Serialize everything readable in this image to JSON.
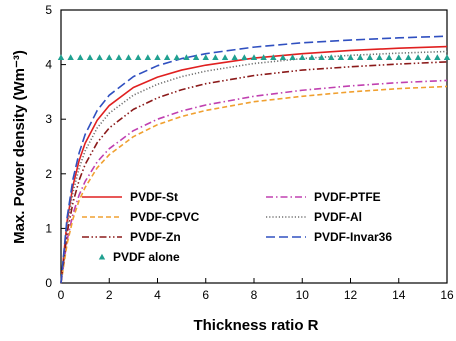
{
  "chart_data": {
    "type": "line",
    "xlabel": "Thickness ratio R",
    "ylabel": "Max. Power density (Wm⁻³)",
    "xlim": [
      0,
      16
    ],
    "ylim": [
      0,
      5
    ],
    "x_ticks": [
      "0",
      "2",
      "4",
      "6",
      "8",
      "10",
      "12",
      "14",
      "16"
    ],
    "y_ticks": [
      "0",
      "1",
      "2",
      "3",
      "4",
      "5"
    ],
    "grid": false,
    "legend_position": "bottom-center",
    "series": [
      {
        "name": "PVDF-St",
        "color": "#e02020",
        "style": "solid",
        "x": [
          0,
          0.25,
          0.5,
          0.75,
          1,
          1.5,
          2,
          3,
          4,
          5,
          6,
          8,
          10,
          12,
          14,
          16
        ],
        "y": [
          0,
          1.12,
          1.79,
          2.24,
          2.56,
          2.98,
          3.25,
          3.58,
          3.77,
          3.9,
          3.99,
          4.12,
          4.2,
          4.26,
          4.3,
          4.33
        ]
      },
      {
        "name": "PVDF-PTFE",
        "color": "#c040b0",
        "style": "dashdot",
        "x": [
          0,
          0.25,
          0.5,
          0.75,
          1,
          1.5,
          2,
          3,
          4,
          5,
          6,
          8,
          10,
          12,
          14,
          16
        ],
        "y": [
          0,
          0.78,
          1.27,
          1.61,
          1.86,
          2.22,
          2.46,
          2.79,
          3.0,
          3.15,
          3.26,
          3.42,
          3.53,
          3.61,
          3.67,
          3.71
        ]
      },
      {
        "name": "PVDF-CPVC",
        "color": "#f0a030",
        "style": "dashed",
        "x": [
          0,
          0.25,
          0.5,
          0.75,
          1,
          1.5,
          2,
          3,
          4,
          5,
          6,
          8,
          10,
          12,
          14,
          16
        ],
        "y": [
          0,
          0.71,
          1.18,
          1.51,
          1.75,
          2.11,
          2.35,
          2.68,
          2.9,
          3.05,
          3.16,
          3.32,
          3.42,
          3.5,
          3.56,
          3.6
        ]
      },
      {
        "name": "PVDF-Al",
        "color": "#707070",
        "style": "dotted",
        "x": [
          0,
          0.25,
          0.5,
          0.75,
          1,
          1.5,
          2,
          3,
          4,
          5,
          6,
          8,
          10,
          12,
          14,
          16
        ],
        "y": [
          0,
          1.03,
          1.67,
          2.1,
          2.42,
          2.84,
          3.11,
          3.44,
          3.64,
          3.78,
          3.88,
          4.02,
          4.11,
          4.17,
          4.21,
          4.24
        ]
      },
      {
        "name": "PVDF-Zn",
        "color": "#8b1a1a",
        "style": "dashdotdot",
        "x": [
          0,
          0.25,
          0.5,
          0.75,
          1,
          1.5,
          2,
          3,
          4,
          5,
          6,
          8,
          10,
          12,
          14,
          16
        ],
        "y": [
          0,
          0.91,
          1.48,
          1.88,
          2.17,
          2.57,
          2.84,
          3.18,
          3.39,
          3.54,
          3.65,
          3.8,
          3.9,
          3.96,
          4.01,
          4.05
        ]
      },
      {
        "name": "PVDF-Invar36",
        "color": "#3050c0",
        "style": "longdash",
        "x": [
          0,
          0.25,
          0.5,
          0.75,
          1,
          1.5,
          2,
          3,
          4,
          5,
          6,
          8,
          10,
          12,
          14,
          16
        ],
        "y": [
          0,
          1.19,
          1.91,
          2.38,
          2.72,
          3.16,
          3.44,
          3.78,
          3.98,
          4.11,
          4.2,
          4.32,
          4.4,
          4.45,
          4.49,
          4.52
        ]
      },
      {
        "name": "PVDF alone",
        "color": "#20a090",
        "style": "triangle-markers",
        "x": [
          0,
          0.4,
          0.8,
          1.2,
          1.6,
          2,
          2.4,
          2.8,
          3.2,
          3.6,
          4,
          4.4,
          4.8,
          5.2,
          5.6,
          6,
          6.4,
          6.8,
          7.2,
          7.6,
          8,
          8.4,
          8.8,
          9.2,
          9.6,
          10,
          10.4,
          10.8,
          11.2,
          11.6,
          12,
          12.4,
          12.8,
          13.2,
          13.6,
          14,
          14.4,
          14.8,
          15.2,
          15.6,
          16
        ],
        "y": [
          4.13,
          4.13,
          4.13,
          4.13,
          4.13,
          4.13,
          4.13,
          4.13,
          4.13,
          4.13,
          4.13,
          4.13,
          4.13,
          4.13,
          4.13,
          4.13,
          4.13,
          4.13,
          4.13,
          4.13,
          4.13,
          4.13,
          4.13,
          4.13,
          4.13,
          4.13,
          4.13,
          4.13,
          4.13,
          4.13,
          4.13,
          4.13,
          4.13,
          4.13,
          4.13,
          4.13,
          4.13,
          4.13,
          4.13,
          4.13,
          4.13
        ]
      }
    ],
    "legend": [
      {
        "series": "PVDF-St",
        "label": "PVDF-St"
      },
      {
        "series": "PVDF-PTFE",
        "label": "PVDF-PTFE"
      },
      {
        "series": "PVDF-CPVC",
        "label": "PVDF-CPVC"
      },
      {
        "series": "PVDF-Al",
        "label": "PVDF-Al"
      },
      {
        "series": "PVDF-Zn",
        "label": "PVDF-Zn"
      },
      {
        "series": "PVDF-Invar36",
        "label": "PVDF-Invar36"
      },
      {
        "series": "PVDF alone",
        "label": "PVDF alone"
      }
    ]
  }
}
